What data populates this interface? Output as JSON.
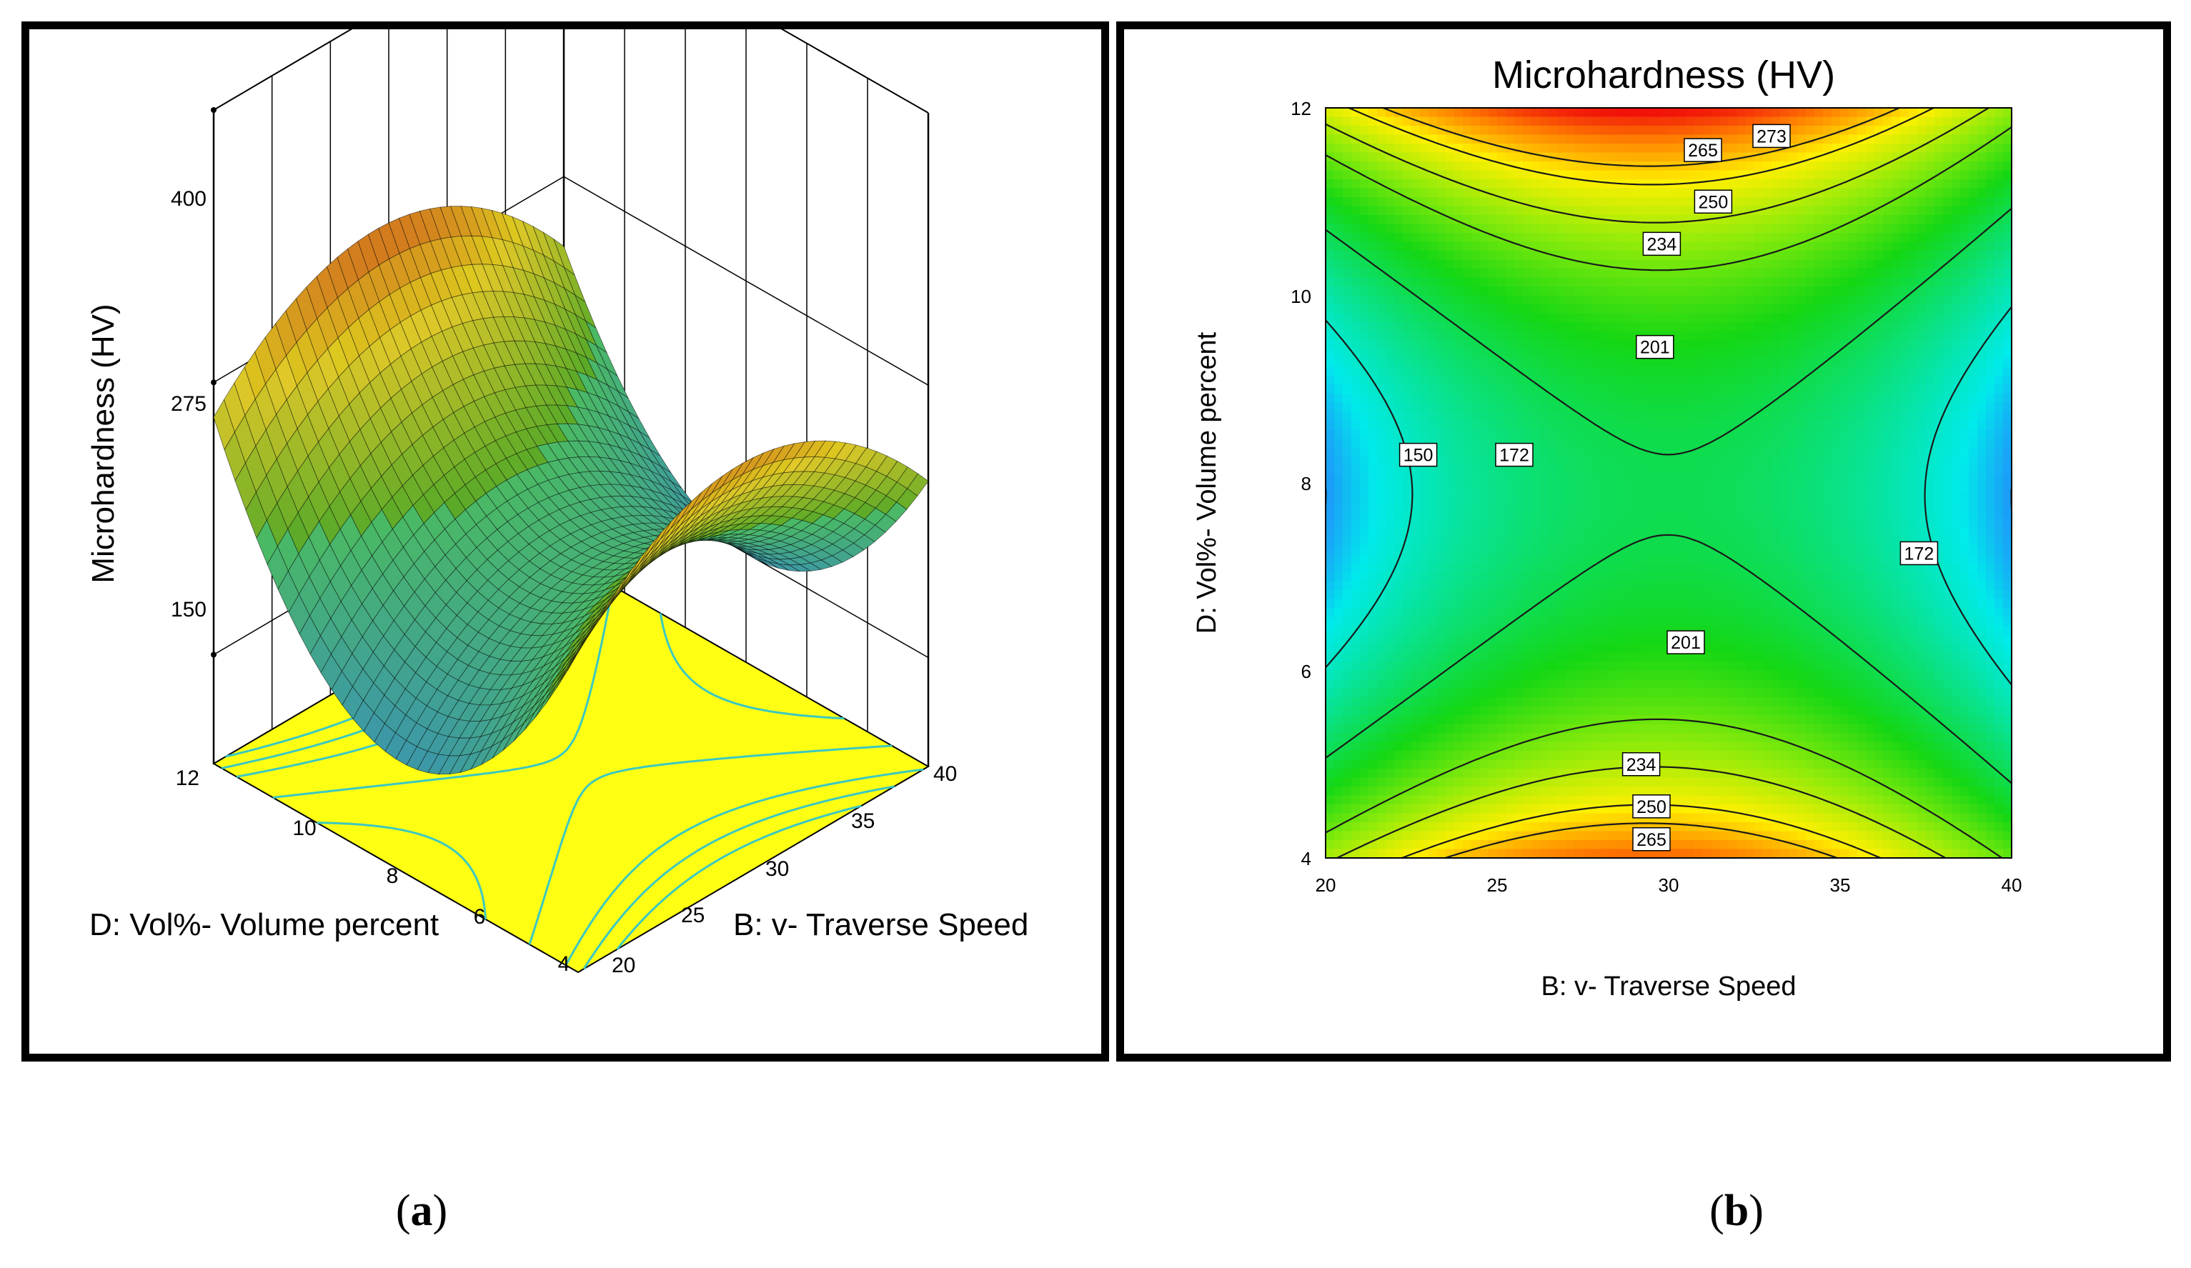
{
  "colors": {
    "surface_high": "#c81e12",
    "surface_mid": "#5aa03c",
    "surface_low": "#38b0b8",
    "floor": "#ffff14",
    "floor_contour": "#3cc8c0",
    "contour_line": "#1a1a1a"
  },
  "chart_data": [
    {
      "type": "surface3d",
      "title": "",
      "zlabel": "Microhardness (HV)",
      "xlabel": "B: v- Traverse Speed",
      "ylabel": "D: Vol%- Volume percent",
      "z_ticks": [
        "400",
        "275",
        "150"
      ],
      "x_ticks": [
        "20",
        "25",
        "30",
        "35",
        "40"
      ],
      "y_ticks": [
        "4",
        "6",
        "8",
        "10",
        "12"
      ],
      "xlim": [
        20,
        40
      ],
      "ylim": [
        4,
        12
      ],
      "zlim": [
        150,
        400
      ],
      "model": "saddle: max at Vol% edges (4, 12) near speed 30; min at speed edges (20, 40) near Vol% 8"
    },
    {
      "type": "contour",
      "title": "Microhardness (HV)",
      "xlabel": "B: v- Traverse Speed",
      "ylabel": "D: Vol%- Volume percent",
      "x_ticks": [
        "20",
        "25",
        "30",
        "35",
        "40"
      ],
      "y_ticks": [
        "4",
        "6",
        "8",
        "10",
        "12"
      ],
      "xlim": [
        20,
        40
      ],
      "ylim": [
        4,
        12
      ],
      "contour_labels": [
        {
          "value": "273",
          "x": 33,
          "y": 11.7
        },
        {
          "value": "265",
          "x": 31,
          "y": 11.55
        },
        {
          "value": "250",
          "x": 31.3,
          "y": 11.0
        },
        {
          "value": "234",
          "x": 29.8,
          "y": 10.55
        },
        {
          "value": "201",
          "x": 29.6,
          "y": 9.45
        },
        {
          "value": "150",
          "x": 22.7,
          "y": 8.3
        },
        {
          "value": "172",
          "x": 25.5,
          "y": 8.3
        },
        {
          "value": "172",
          "x": 37.3,
          "y": 7.25
        },
        {
          "value": "201",
          "x": 30.5,
          "y": 6.3
        },
        {
          "value": "234",
          "x": 29.2,
          "y": 5.0
        },
        {
          "value": "250",
          "x": 29.5,
          "y": 4.55
        },
        {
          "value": "265",
          "x": 29.5,
          "y": 4.2
        }
      ]
    }
  ],
  "captions": {
    "a": "a",
    "b": "b"
  }
}
